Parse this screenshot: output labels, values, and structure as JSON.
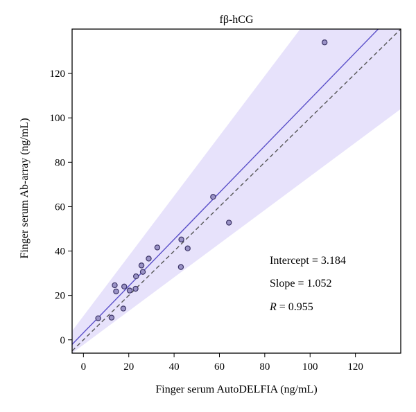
{
  "chart_data": {
    "type": "scatter",
    "title": "fβ-hCG",
    "xlabel": "Finger serum AutoDELFIA (ng/mL)",
    "ylabel": "Finger serum Ab-array (ng/mL)",
    "xlim": [
      -5,
      140
    ],
    "ylim": [
      -6,
      140
    ],
    "xticks": [
      0,
      20,
      40,
      60,
      80,
      100,
      120
    ],
    "yticks": [
      0,
      20,
      40,
      60,
      80,
      100,
      120
    ],
    "points": [
      {
        "x": 6.5,
        "y": 9.7
      },
      {
        "x": 12.4,
        "y": 10.0
      },
      {
        "x": 13.8,
        "y": 24.6
      },
      {
        "x": 14.4,
        "y": 21.8
      },
      {
        "x": 17.6,
        "y": 14.1
      },
      {
        "x": 18.0,
        "y": 24.0
      },
      {
        "x": 20.4,
        "y": 22.2
      },
      {
        "x": 23.0,
        "y": 23.0
      },
      {
        "x": 23.2,
        "y": 28.6
      },
      {
        "x": 25.6,
        "y": 33.5
      },
      {
        "x": 26.2,
        "y": 30.6
      },
      {
        "x": 28.8,
        "y": 36.6
      },
      {
        "x": 32.6,
        "y": 41.6
      },
      {
        "x": 43.0,
        "y": 32.8
      },
      {
        "x": 43.2,
        "y": 45.2
      },
      {
        "x": 46.0,
        "y": 41.2
      },
      {
        "x": 57.2,
        "y": 64.4
      },
      {
        "x": 64.2,
        "y": 52.8
      },
      {
        "x": 106.4,
        "y": 134.0
      }
    ],
    "regression": {
      "intercept": 3.184,
      "slope": 1.052
    },
    "confidence_band": {
      "lower_at_xmax": 104,
      "upper_at_xmax": 200,
      "lower_at_xmin": -6,
      "upper_at_xmin": 4
    },
    "identity_line": true,
    "colors": {
      "points_fill": "#9a92c6",
      "points_stroke": "#3b3466",
      "regression_line": "#5a4fc9",
      "identity_line": "#555555",
      "band": "#e7e2fb"
    },
    "stats": {
      "intercept_text": "Intercept = 3.184",
      "slope_text": "Slope = 1.052",
      "r_label": "R",
      "r_value_text": " = 0.955"
    }
  }
}
